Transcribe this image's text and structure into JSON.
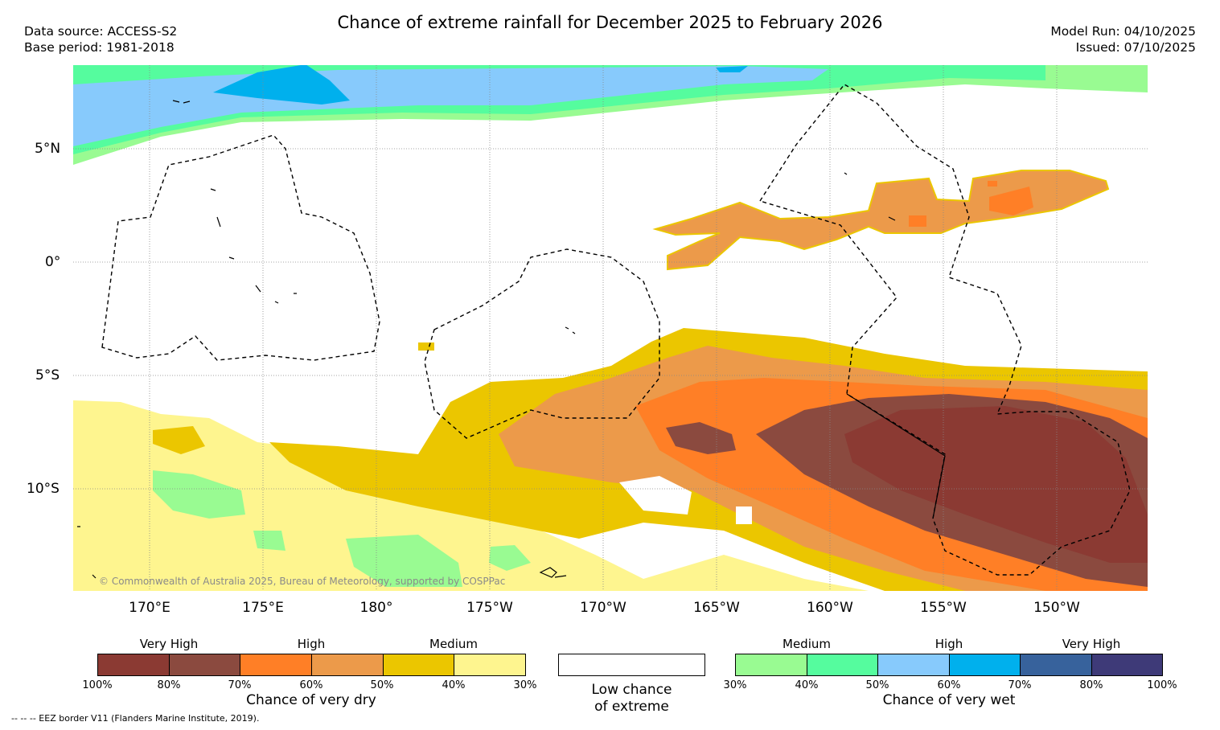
{
  "header": {
    "title": "Chance of extreme rainfall for December 2025 to February 2026",
    "data_source": "Data source: ACCESS-S2",
    "base_period": "Base period: 1981-2018",
    "model_run": "Model Run: 04/10/2025",
    "issued": "Issued: 07/10/2025"
  },
  "map": {
    "lat_labels": [
      "5°N",
      "0°",
      "5°S",
      "10°S"
    ],
    "lon_labels": [
      "170°E",
      "175°E",
      "180°",
      "175°W",
      "170°W",
      "165°W",
      "160°W",
      "155°W",
      "150°W"
    ],
    "copyright": "© Commonwealth of Australia 2025, Bureau of Meteorology, supported by COSPPac"
  },
  "colors": {
    "dry_100_90": "#8b3a33",
    "dry_90_80": "#8b4a3f",
    "dry_70_60": "#ff7f26",
    "dry_60_50": "#ec9a4a",
    "dry_50_40": "#ebc600",
    "dry_40_30": "#fef58f",
    "wet_30_40": "#99fb92",
    "wet_40_50": "#55fc9e",
    "wet_50_60": "#87cafc",
    "wet_60_70": "#00b0ed",
    "wet_70_80": "#37629c",
    "wet_80_100": "#3e3a78"
  },
  "legend": {
    "dry": {
      "categories": [
        "Very High",
        "High",
        "Medium"
      ],
      "ticks": [
        "100%",
        "80%",
        "70%",
        "60%",
        "50%",
        "40%",
        "30%"
      ],
      "title": "Chance of very dry"
    },
    "low": {
      "line1": "Low chance",
      "line2": "of extreme"
    },
    "wet": {
      "categories": [
        "Medium",
        "High",
        "Very High"
      ],
      "ticks": [
        "30%",
        "40%",
        "50%",
        "60%",
        "70%",
        "80%",
        "100%"
      ],
      "title": "Chance of very wet"
    }
  },
  "footnote": "-- -- -- EEZ border V11 (Flanders Marine Institute, 2019)."
}
